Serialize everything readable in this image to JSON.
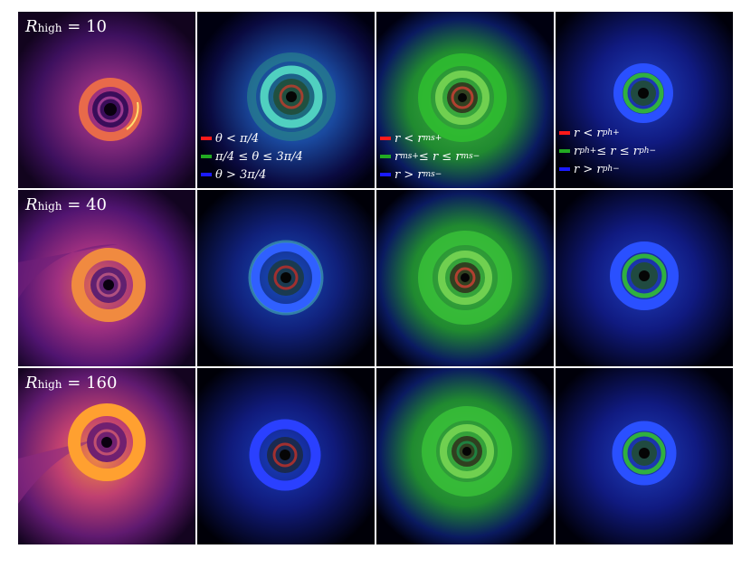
{
  "rows": [
    {
      "label_var": "R",
      "label_sub": "high",
      "label_rest": " = 10"
    },
    {
      "label_var": "R",
      "label_sub": "high",
      "label_rest": " = 40"
    },
    {
      "label_var": "R",
      "label_sub": "high",
      "label_rest": " = 160"
    }
  ],
  "legends": {
    "theta": [
      {
        "color": "#ff1a1a",
        "text": "θ < π/4"
      },
      {
        "color": "#22aa22",
        "text": "π/4 ≤ θ ≤ 3π/4"
      },
      {
        "color": "#1a1aff",
        "text": "θ > 3π/4"
      }
    ],
    "rms": [
      {
        "color": "#ff1a1a",
        "text": "r < r",
        "sub": "ms+"
      },
      {
        "color": "#22aa22",
        "text": "r",
        "sub": "ms+",
        "text2": " ≤ r ≤ r",
        "sub2": "ms−"
      },
      {
        "color": "#1a1aff",
        "text": "r > r",
        "sub": "ms−"
      }
    ],
    "rph": [
      {
        "color": "#ff1a1a",
        "text": "r < r",
        "sub": "ph+"
      },
      {
        "color": "#22aa22",
        "text": "r",
        "sub": "ph+",
        "text2": " ≤ r ≤ r",
        "sub2": "ph−"
      },
      {
        "color": "#1a1aff",
        "text": "r > r",
        "sub": "ph−"
      }
    ]
  },
  "colors": {
    "inferno_bright": "#ff9a2a",
    "inferno_mid": "#b0358a",
    "inferno_dark": "#3a0d5a",
    "red": "#ff1a1a",
    "green": "#22aa22",
    "blue": "#1a1aff"
  }
}
